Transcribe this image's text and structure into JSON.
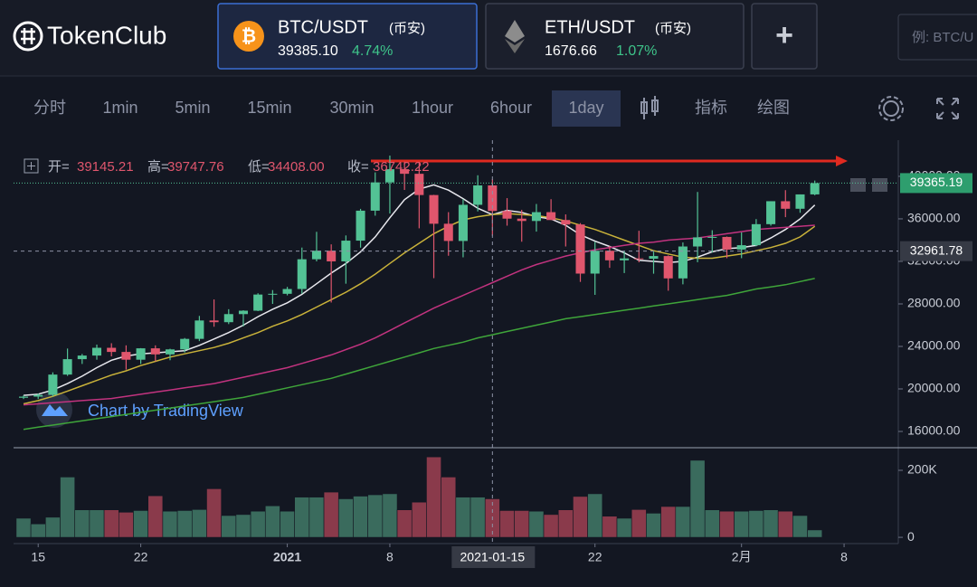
{
  "header": {
    "logo": "TokenClub",
    "tabs": [
      {
        "pair": "BTC/USDT",
        "exchange": "(币安)",
        "price": "39385.10",
        "change": "4.74%"
      },
      {
        "pair": "ETH/USDT",
        "exchange": "(币安)",
        "price": "1676.66",
        "change": "1.07%"
      }
    ],
    "add": "+",
    "search_placeholder": "例: BTC/U"
  },
  "toolbar": {
    "items": [
      "分时",
      "1min",
      "5min",
      "15min",
      "30min",
      "1hour",
      "6hour",
      "1day"
    ],
    "active": "1day",
    "indicators": "指标",
    "drawing": "绘图"
  },
  "watermark": "Chart by TradingView",
  "chart_data": {
    "type": "candlestick",
    "up_color": "#53c295",
    "down_color": "#e0566d",
    "volume_up_color": "#3a6b5d",
    "volume_down_color": "#8a3a4b",
    "xlim": [
      -0.68,
      59.7
    ],
    "xticks": [
      {
        "value": 1,
        "label": "15"
      },
      {
        "value": 8,
        "label": "22"
      },
      {
        "value": 18,
        "label": "2021"
      },
      {
        "value": 25,
        "label": "8"
      },
      {
        "value": 39,
        "label": "22"
      },
      {
        "value": 49,
        "label": "2月"
      },
      {
        "value": 56,
        "label": "8"
      }
    ],
    "ylim": [
      14470,
      43400
    ],
    "yticks": [
      {
        "value": 16000,
        "label": "16000.00"
      },
      {
        "value": 20000,
        "label": "20000.00"
      },
      {
        "value": 24000,
        "label": "24000.00"
      },
      {
        "value": 28000,
        "label": "28000.00"
      },
      {
        "value": 32000,
        "label": "32000.00"
      },
      {
        "value": 36000,
        "label": "36000.00"
      },
      {
        "value": 40000,
        "label": "40000.00"
      }
    ],
    "open": [
      19170,
      19275,
      19440,
      21350,
      22800,
      23140,
      23870,
      23480,
      22750,
      23820,
      23250,
      23720,
      24710,
      26440,
      26280,
      27040,
      27360,
      28880,
      28950,
      29400,
      32200,
      33000,
      32000,
      33950,
      36770,
      39430,
      40670,
      40240,
      38240,
      35540,
      33920,
      37320,
      39145.21,
      36740,
      36020,
      35800,
      36630,
      35890,
      35470,
      30850,
      33000,
      32100,
      32280,
      32250,
      32500,
      30400,
      33400,
      34260,
      34300,
      33110,
      33520,
      35500,
      37660,
      36950,
      38300
    ],
    "high": [
      19400,
      19570,
      21560,
      23800,
      23290,
      24170,
      24300,
      24100,
      23840,
      24100,
      23780,
      24790,
      26870,
      28420,
      27500,
      27400,
      29000,
      29300,
      29600,
      33300,
      34780,
      33600,
      34440,
      36940,
      40370,
      41950,
      41380,
      41350,
      38260,
      36630,
      37850,
      40100,
      39747.76,
      37950,
      36850,
      37400,
      37850,
      36420,
      35600,
      33830,
      33450,
      32950,
      34880,
      32920,
      32560,
      33780,
      38530,
      34930,
      34340,
      34720,
      35980,
      37660,
      38700,
      38300,
      39600
    ],
    "low": [
      19050,
      19050,
      19290,
      21230,
      22350,
      22750,
      23060,
      21820,
      22350,
      22600,
      22700,
      23430,
      24500,
      25850,
      26100,
      25880,
      27320,
      28000,
      28800,
      28950,
      32000,
      28130,
      29900,
      33290,
      36300,
      36500,
      38720,
      35110,
      30420,
      32530,
      32380,
      36700,
      34408,
      35360,
      33850,
      34800,
      35900,
      33400,
      30070,
      28850,
      31390,
      30900,
      31910,
      30840,
      29240,
      29840,
      31920,
      32830,
      32300,
      32300,
      33420,
      35360,
      36160,
      36570,
      38220
    ],
    "close": [
      19275,
      19440,
      21350,
      22800,
      23140,
      23870,
      23480,
      22750,
      23820,
      23250,
      23720,
      24710,
      26440,
      26280,
      27040,
      27360,
      28880,
      28950,
      29400,
      32200,
      33000,
      32000,
      33950,
      36770,
      39430,
      40670,
      40240,
      38240,
      35540,
      33920,
      37320,
      39145.21,
      36742.22,
      36020,
      35800,
      36630,
      35890,
      35470,
      30850,
      33000,
      32100,
      32280,
      32250,
      32500,
      30400,
      33400,
      34260,
      34300,
      33110,
      33520,
      35500,
      37660,
      36950,
      38300,
      39365.19
    ],
    "moving_averages": [
      {
        "color": "#e8e8ee",
        "values": [
          19400,
          19500,
          19900,
          20500,
          21200,
          22000,
          22700,
          23100,
          23300,
          23400,
          23500,
          23600,
          24100,
          24700,
          25300,
          26000,
          26800,
          27500,
          28100,
          28900,
          29900,
          30900,
          31800,
          32900,
          34300,
          36100,
          37800,
          38800,
          39200,
          38700,
          37900,
          37000,
          36400,
          36800,
          36600,
          36200,
          36000,
          35400,
          34500,
          33900,
          33400,
          32800,
          32100,
          32000,
          31900,
          32000,
          32400,
          32900,
          33200,
          33300,
          33500,
          34200,
          35000,
          36000,
          37300
        ]
      },
      {
        "color": "#c9b23a",
        "values": [
          18600,
          18900,
          19300,
          19800,
          20300,
          20800,
          21300,
          21700,
          22200,
          22600,
          23000,
          23300,
          23600,
          23900,
          24300,
          24800,
          25300,
          25900,
          26400,
          27000,
          27700,
          28400,
          29100,
          29900,
          30800,
          31800,
          32800,
          33700,
          34600,
          35300,
          35900,
          36200,
          36400,
          36500,
          36400,
          36300,
          36100,
          35800,
          35400,
          35000,
          34500,
          34000,
          33500,
          33000,
          32700,
          32400,
          32300,
          32300,
          32500,
          32700,
          33000,
          33300,
          33700,
          34300,
          35300
        ]
      },
      {
        "color": "#c2337f",
        "values": [
          18500,
          18600,
          18700,
          18800,
          18900,
          19000,
          19100,
          19300,
          19500,
          19700,
          19900,
          20100,
          20300,
          20500,
          20800,
          21100,
          21400,
          21700,
          22000,
          22400,
          22800,
          23200,
          23700,
          24200,
          24800,
          25500,
          26200,
          26900,
          27600,
          28200,
          28800,
          29400,
          30000,
          30600,
          31200,
          31700,
          32100,
          32500,
          32800,
          33100,
          33300,
          33500,
          33700,
          33800,
          34000,
          34100,
          34200,
          34400,
          34600,
          34800,
          35000,
          35100,
          35200,
          35300,
          35400
        ]
      },
      {
        "color": "#3fa53a",
        "values": [
          16200,
          16400,
          16600,
          16800,
          17000,
          17200,
          17400,
          17600,
          17800,
          18000,
          18200,
          18400,
          18600,
          18800,
          19000,
          19200,
          19500,
          19800,
          20100,
          20400,
          20700,
          21000,
          21400,
          21800,
          22200,
          22600,
          23000,
          23400,
          23800,
          24100,
          24400,
          24800,
          25100,
          25400,
          25700,
          26000,
          26300,
          26600,
          26800,
          27000,
          27200,
          27400,
          27600,
          27800,
          28000,
          28200,
          28400,
          28600,
          28800,
          29100,
          29400,
          29600,
          29800,
          30100,
          30400
        ]
      }
    ],
    "volume": {
      "ylim": [
        -16000,
        254000
      ],
      "yticks": [
        0,
        {
          "value": 200000,
          "label": "200K"
        }
      ],
      "values": [
        57000,
        40000,
        60000,
        180000,
        82000,
        82000,
        82000,
        75000,
        80000,
        124000,
        78000,
        80000,
        83000,
        145000,
        65000,
        68000,
        78000,
        94000,
        78000,
        120000,
        120000,
        135000,
        115000,
        123000,
        127000,
        130000,
        82000,
        105000,
        240000,
        180000,
        120000,
        120000,
        115000,
        80000,
        80000,
        78000,
        68000,
        82000,
        122000,
        130000,
        63000,
        57000,
        83000,
        72000,
        92000,
        92000,
        230000,
        82000,
        78000,
        78000,
        80000,
        82000,
        78000,
        65000,
        22000
      ]
    },
    "ohlc_legend": {
      "labels": [
        "开=",
        "高=",
        "低=",
        "收="
      ],
      "value_labels": [
        "39145.21",
        "39747.76",
        "34408.00",
        "36742.22"
      ]
    },
    "crosshair": {
      "x": 32,
      "x_label": "2021-01-15",
      "y": 32961.78
    }
  }
}
